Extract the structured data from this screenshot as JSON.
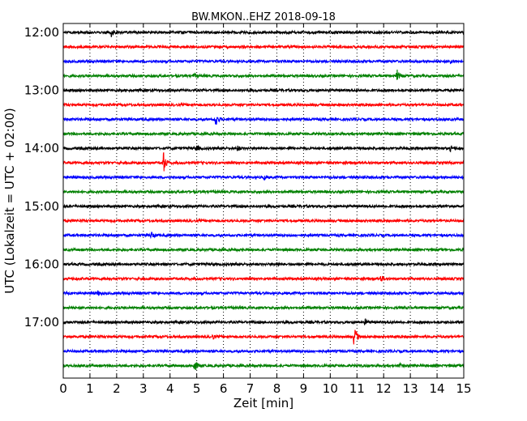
{
  "chart_data": {
    "type": "line",
    "title": "BW.MKON..EHZ 2018-09-18",
    "xlabel": "Zeit  [min]",
    "ylabel": "UTC (Lokalzeit = UTC + 02:00)",
    "xlim": [
      0,
      15
    ],
    "x_ticks": [
      "0",
      "1",
      "2",
      "3",
      "4",
      "5",
      "6",
      "7",
      "8",
      "9",
      "10",
      "11",
      "12",
      "13",
      "14",
      "15"
    ],
    "y_tick_labels": [
      "12:00",
      "13:00",
      "14:00",
      "15:00",
      "16:00",
      "17:00"
    ],
    "grid": true,
    "grid_axis": "x",
    "trace_interval_min": 15,
    "trace_colors": [
      "#000000",
      "#ff0000",
      "#0000ff",
      "#008000"
    ],
    "series": [
      {
        "start": "12:00",
        "color": "#000000",
        "events": [
          {
            "t": 1.8,
            "amp": 0.7
          }
        ]
      },
      {
        "start": "12:15",
        "color": "#ff0000",
        "events": []
      },
      {
        "start": "12:30",
        "color": "#0000ff",
        "events": [
          {
            "t": 14.5,
            "amp": 0.3
          }
        ]
      },
      {
        "start": "12:45",
        "color": "#008000",
        "events": [
          {
            "t": 12.5,
            "amp": 0.8
          },
          {
            "t": 4.9,
            "amp": 0.3
          }
        ]
      },
      {
        "start": "13:00",
        "color": "#000000",
        "events": []
      },
      {
        "start": "13:15",
        "color": "#ff0000",
        "events": []
      },
      {
        "start": "13:30",
        "color": "#0000ff",
        "events": [
          {
            "t": 5.7,
            "amp": 1.1
          }
        ]
      },
      {
        "start": "13:45",
        "color": "#008000",
        "events": []
      },
      {
        "start": "14:00",
        "color": "#000000",
        "events": [
          {
            "t": 5.0,
            "amp": 0.4
          },
          {
            "t": 6.5,
            "amp": 0.4
          },
          {
            "t": 14.5,
            "amp": 0.3
          }
        ]
      },
      {
        "start": "14:15",
        "color": "#ff0000",
        "events": [
          {
            "t": 3.75,
            "amp": 1.6
          }
        ]
      },
      {
        "start": "14:30",
        "color": "#0000ff",
        "events": [
          {
            "t": 7.5,
            "amp": 0.3
          }
        ]
      },
      {
        "start": "14:45",
        "color": "#008000",
        "events": []
      },
      {
        "start": "15:00",
        "color": "#000000",
        "events": []
      },
      {
        "start": "15:15",
        "color": "#ff0000",
        "events": []
      },
      {
        "start": "15:30",
        "color": "#0000ff",
        "events": [
          {
            "t": 3.3,
            "amp": 0.5
          }
        ]
      },
      {
        "start": "15:45",
        "color": "#008000",
        "events": []
      },
      {
        "start": "16:00",
        "color": "#000000",
        "events": [
          {
            "t": 8.0,
            "amp": 0.3
          }
        ]
      },
      {
        "start": "16:15",
        "color": "#ff0000",
        "events": [
          {
            "t": 11.9,
            "amp": 0.5
          }
        ]
      },
      {
        "start": "16:30",
        "color": "#0000ff",
        "events": [
          {
            "t": 1.3,
            "amp": 0.3
          }
        ]
      },
      {
        "start": "16:45",
        "color": "#008000",
        "events": []
      },
      {
        "start": "17:00",
        "color": "#000000",
        "events": [
          {
            "t": 11.3,
            "amp": 0.4
          }
        ]
      },
      {
        "start": "17:15",
        "color": "#ff0000",
        "events": [
          {
            "t": 10.9,
            "amp": 1.9
          },
          {
            "t": 5.6,
            "amp": 0.3
          }
        ]
      },
      {
        "start": "17:30",
        "color": "#0000ff",
        "events": []
      },
      {
        "start": "17:45",
        "color": "#008000",
        "events": [
          {
            "t": 4.9,
            "amp": 1.0
          },
          {
            "t": 12.6,
            "amp": 0.3
          }
        ]
      }
    ]
  }
}
